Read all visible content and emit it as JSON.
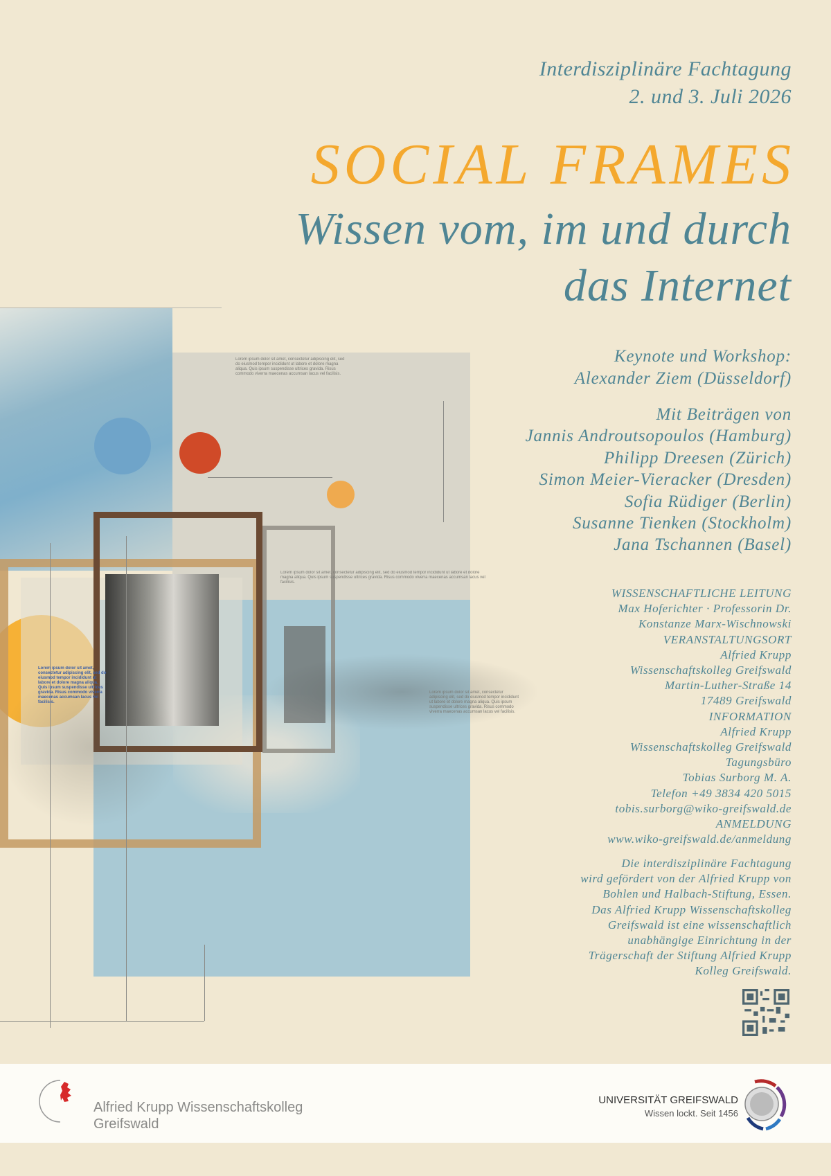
{
  "header": {
    "event_type": "Interdisziplinäre Fachtagung",
    "date": "2. und 3. Juli 2026",
    "title": "SOCIAL FRAMES",
    "subtitle_line1": "Wissen vom, im und durch",
    "subtitle_line2": "das Internet"
  },
  "keynote": {
    "label": "Keynote und Workshop:",
    "speaker": "Alexander Ziem (Düsseldorf)"
  },
  "contributions": {
    "label": "Mit Beiträgen von",
    "names": [
      "Jannis Androutsopoulos (Hamburg)",
      "Philipp Dreesen (Zürich)",
      "Simon Meier-Vieracker (Dresden)",
      "Sofia Rüdiger (Berlin)",
      "Susanne Tienken (Stockholm)",
      "Jana Tschannen (Basel)"
    ]
  },
  "info": {
    "lines": [
      "WISSENSCHAFTLICHE LEITUNG",
      "Max Hoferichter · Professorin Dr.",
      "Konstanze Marx-Wischnowski",
      "VERANSTALTUNGSORT",
      "Alfried Krupp",
      "Wissenschaftskolleg Greifswald",
      "Martin-Luther-Straße 14",
      "17489 Greifswald",
      "INFORMATION",
      "Alfried Krupp",
      "Wissenschaftskolleg Greifswald",
      "Tagungsbüro",
      "Tobias Surborg M. A.",
      "Telefon +49 3834 420 5015",
      "tobis.surborg@wiko-greifswald.de",
      "ANMELDUNG",
      "www.wiko-greifswald.de/anmeldung"
    ]
  },
  "funding": {
    "lines": [
      "Die interdisziplinäre Fachtagung",
      "wird gefördert von der Alfried Krupp von",
      "Bohlen und Halbach-Stiftung, Essen.",
      "Das Alfried Krupp Wissenschaftskolleg",
      "Greifswald ist eine wissenschaftlich",
      "unabhängige Einrichtung in der",
      "Trägerschaft der Stiftung Alfried Krupp",
      "Kolleg Greifswald."
    ]
  },
  "footer": {
    "left_logo_line1": "Alfried Krupp Wissenschaftskolleg",
    "left_logo_line2": "Greifswald",
    "right_logo_name": "UNIVERSITÄT GREIFSWALD",
    "right_logo_tagline": "Wissen lockt. Seit 1456"
  },
  "art_text": {
    "filler": "Lorem ipsum dolor sit amet, consectetur adipiscing elit, sed do eiusmod tempor incididunt ut labore et dolore magna aliqua. Quis ipsum suspendisse ultrices gravida. Risus commodo viverra maecenas accumsan lacus vel facilisis."
  },
  "colors": {
    "background": "#f1e8d2",
    "teal": "#4f8594",
    "orange": "#f4a82e"
  }
}
